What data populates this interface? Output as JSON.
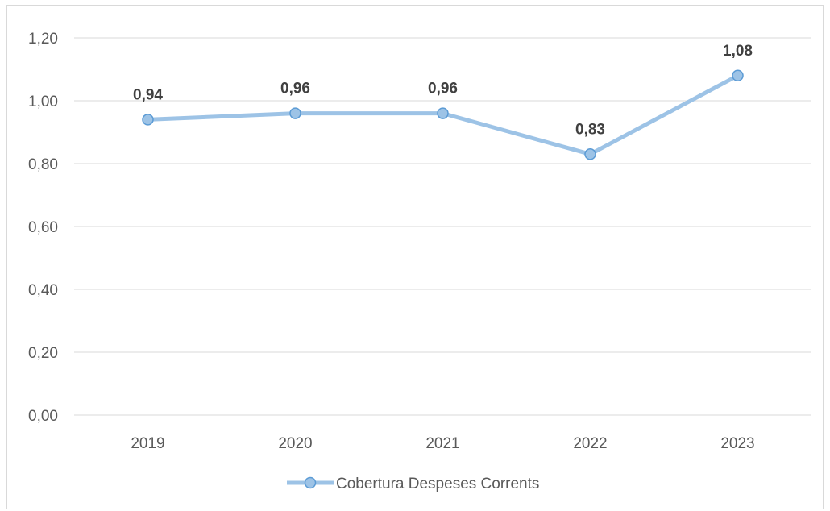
{
  "chart_data": {
    "type": "line",
    "categories": [
      "2019",
      "2020",
      "2021",
      "2022",
      "2023"
    ],
    "series": [
      {
        "name": "Cobertura Despeses Corrents",
        "values": [
          0.94,
          0.96,
          0.96,
          0.83,
          1.08
        ],
        "labels": [
          "0,94",
          "0,96",
          "0,96",
          "0,83",
          "1,08"
        ],
        "color": "#9dc3e6",
        "marker_color": "#9dc3e6",
        "marker_stroke": "#5b9bd5"
      }
    ],
    "ylim": [
      0,
      1.2
    ],
    "yticks": [
      0,
      0.2,
      0.4,
      0.6,
      0.8,
      1.0,
      1.2
    ],
    "ytick_labels": [
      "0,00",
      "0,20",
      "0,40",
      "0,60",
      "0,80",
      "1,00",
      "1,20"
    ],
    "grid": true,
    "legend_position": "bottom",
    "title": "",
    "xlabel": "",
    "ylabel": ""
  }
}
